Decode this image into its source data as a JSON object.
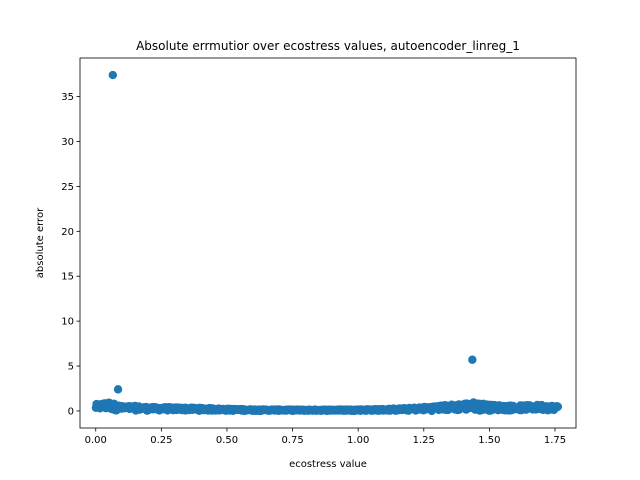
{
  "chart_data": {
    "type": "scatter",
    "title": "Absolute errmutior over ecostress values, autoencoder_linreg_1",
    "xlabel": "ecostress value",
    "ylabel": "absolute error",
    "xlim": [
      -0.06,
      1.83
    ],
    "ylim": [
      -1.9,
      39.3
    ],
    "xticks": [
      0.0,
      0.25,
      0.5,
      0.75,
      1.0,
      1.25,
      1.5,
      1.75
    ],
    "xtick_labels": [
      "0.00",
      "0.25",
      "0.50",
      "0.75",
      "1.00",
      "1.25",
      "1.50",
      "1.75"
    ],
    "yticks": [
      0,
      5,
      10,
      15,
      20,
      25,
      30,
      35
    ],
    "ytick_labels": [
      "0",
      "5",
      "10",
      "15",
      "20",
      "25",
      "30",
      "35"
    ],
    "grid": false,
    "marker_color": "#1f77b4",
    "outliers": [
      {
        "x": 0.065,
        "y": 37.4
      },
      {
        "x": 0.085,
        "y": 2.4
      },
      {
        "x": 1.435,
        "y": 5.7
      }
    ],
    "band_profile": [
      {
        "x": 0.0,
        "lo": 0.05,
        "hi": 0.75
      },
      {
        "x": 0.05,
        "lo": 0.05,
        "hi": 1.0
      },
      {
        "x": 0.1,
        "lo": 0.03,
        "hi": 0.55
      },
      {
        "x": 0.15,
        "lo": 0.03,
        "hi": 0.55
      },
      {
        "x": 0.2,
        "lo": 0.02,
        "hi": 0.45
      },
      {
        "x": 0.3,
        "lo": 0.02,
        "hi": 0.4
      },
      {
        "x": 0.4,
        "lo": 0.01,
        "hi": 0.35
      },
      {
        "x": 0.5,
        "lo": 0.0,
        "hi": 0.25
      },
      {
        "x": 0.6,
        "lo": 0.0,
        "hi": 0.18
      },
      {
        "x": 0.75,
        "lo": 0.0,
        "hi": 0.15
      },
      {
        "x": 0.9,
        "lo": 0.0,
        "hi": 0.15
      },
      {
        "x": 1.0,
        "lo": 0.0,
        "hi": 0.18
      },
      {
        "x": 1.1,
        "lo": 0.0,
        "hi": 0.22
      },
      {
        "x": 1.2,
        "lo": 0.0,
        "hi": 0.35
      },
      {
        "x": 1.25,
        "lo": 0.0,
        "hi": 0.45
      },
      {
        "x": 1.35,
        "lo": 0.0,
        "hi": 0.7
      },
      {
        "x": 1.45,
        "lo": 0.0,
        "hi": 1.0
      },
      {
        "x": 1.5,
        "lo": 0.02,
        "hi": 0.7
      },
      {
        "x": 1.6,
        "lo": 0.03,
        "hi": 0.6
      },
      {
        "x": 1.7,
        "lo": 0.04,
        "hi": 0.7
      },
      {
        "x": 1.76,
        "lo": 0.1,
        "hi": 0.55
      }
    ]
  }
}
